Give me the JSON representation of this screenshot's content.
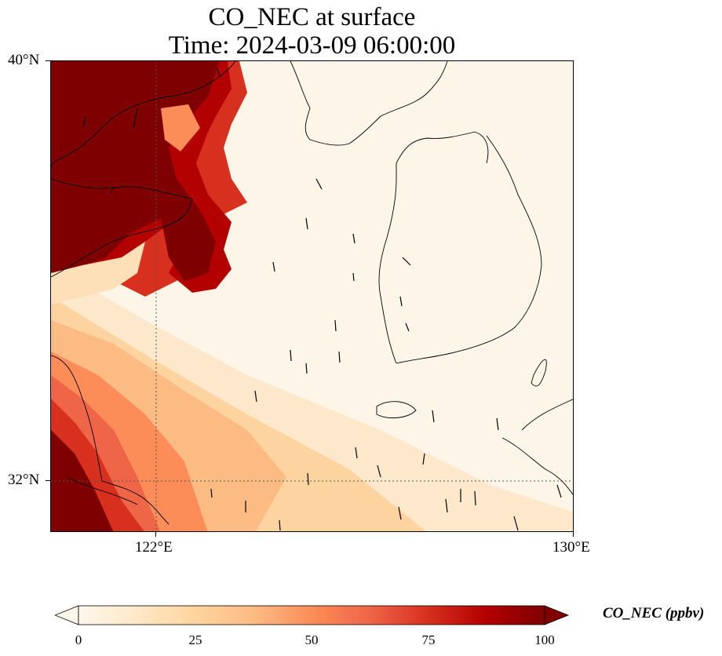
{
  "title": {
    "line1": "CO_NEC at surface",
    "line2": "Time: 2024-03-09 06:00:00"
  },
  "axes": {
    "y_ticks": [
      {
        "label": "40°N",
        "lat": 40
      },
      {
        "label": "32°N",
        "lat": 32
      }
    ],
    "x_ticks": [
      {
        "label": "122°E",
        "lon": 122
      },
      {
        "label": "130°E",
        "lon": 130
      }
    ],
    "lon_range": [
      120,
      130
    ],
    "lat_range": [
      31,
      40
    ]
  },
  "colorbar": {
    "label": "CO_NEC (ppbv)",
    "ticks": [
      "0",
      "25",
      "50",
      "75",
      "100"
    ],
    "range": [
      0,
      100
    ],
    "colormap": "OrRd",
    "extend": "both",
    "colors": [
      "#fff7ec",
      "#fee8c8",
      "#fdd49e",
      "#fdbb84",
      "#fc8d59",
      "#ef6548",
      "#d7301f",
      "#b30000",
      "#7f0000"
    ]
  },
  "map": {
    "variable": "CO_NEC",
    "level": "surface",
    "features": [
      "coastlines",
      "wind-vectors",
      "gridlines",
      "filled-concentration-field"
    ]
  }
}
